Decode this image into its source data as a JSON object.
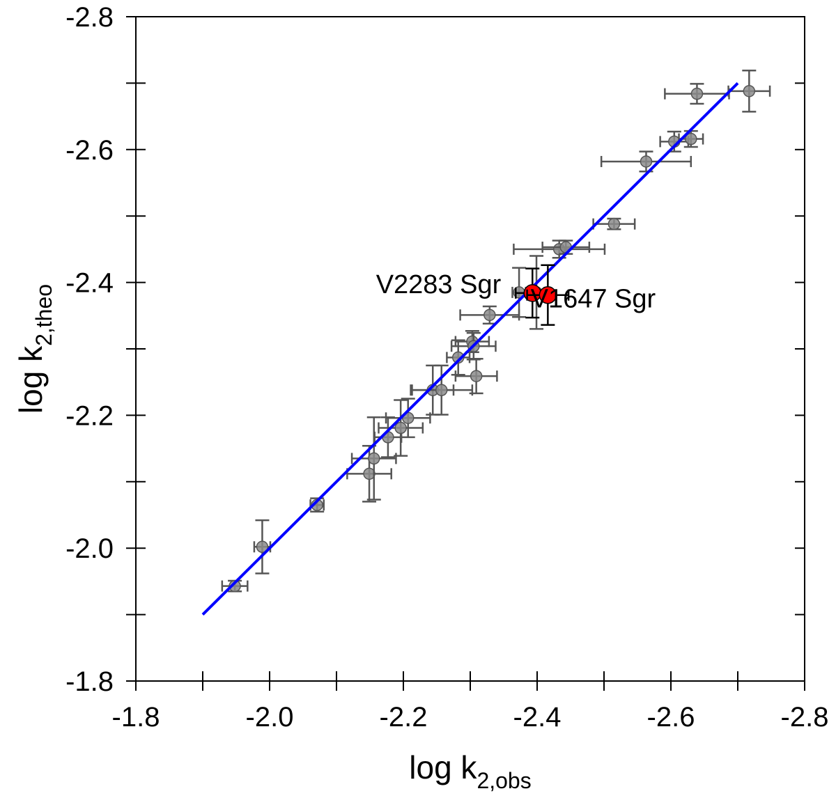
{
  "chart_data": {
    "type": "scatter",
    "xlabel": "log k",
    "xlabel_sub": "2,obs",
    "ylabel": "log k",
    "ylabel_sub": "2,theo",
    "xlim": [
      -1.8,
      -2.8
    ],
    "ylim": [
      -1.8,
      -2.8
    ],
    "x_ticks": [
      "-1.8",
      "-2.0",
      "-2.2",
      "-2.4",
      "-2.6",
      "-2.8"
    ],
    "y_ticks": [
      "-1.8",
      "-2.0",
      "-2.2",
      "-2.4",
      "-2.6",
      "-2.8"
    ],
    "grid": false,
    "colors": {
      "points": "#8c8c8c",
      "highlight": "#ff0000",
      "fit_line": "#0000ff",
      "errorbar": "#555555"
    },
    "fit_line": {
      "x": [
        -1.9,
        -2.7
      ],
      "y": [
        -1.9,
        -2.7
      ]
    },
    "points": [
      {
        "x": -1.948,
        "y": -1.943,
        "xerr": 0.019,
        "yerr": 0.008
      },
      {
        "x": -1.989,
        "y": -2.002,
        "xerr": 0.012,
        "yerr": 0.04
      },
      {
        "x": -2.071,
        "y": -2.065,
        "xerr": 0.01,
        "yerr": 0.01
      },
      {
        "x": -2.149,
        "y": -2.112,
        "xerr": 0.033,
        "yerr": 0.042
      },
      {
        "x": -2.156,
        "y": -2.135,
        "xerr": 0.033,
        "yerr": 0.062
      },
      {
        "x": -2.177,
        "y": -2.167,
        "xerr": 0.02,
        "yerr": 0.03
      },
      {
        "x": -2.196,
        "y": -2.181,
        "xerr": 0.033,
        "yerr": 0.042
      },
      {
        "x": -2.207,
        "y": -2.196,
        "xerr": 0.033,
        "yerr": 0.029
      },
      {
        "x": -2.244,
        "y": -2.238,
        "xerr": 0.031,
        "yerr": 0.037
      },
      {
        "x": -2.257,
        "y": -2.238,
        "xerr": 0.046,
        "yerr": 0.037
      },
      {
        "x": -2.282,
        "y": -2.287,
        "xerr": 0.017,
        "yerr": 0.026
      },
      {
        "x": -2.303,
        "y": -2.311,
        "xerr": 0.025,
        "yerr": 0.016
      },
      {
        "x": -2.305,
        "y": -2.304,
        "xerr": 0.033,
        "yerr": 0.02
      },
      {
        "x": -2.309,
        "y": -2.259,
        "xerr": 0.031,
        "yerr": 0.026
      },
      {
        "x": -2.329,
        "y": -2.351,
        "xerr": 0.044,
        "yerr": 0.013
      },
      {
        "x": -2.373,
        "y": -2.385,
        "xerr": 0.01,
        "yerr": 0.037
      },
      {
        "x": -2.399,
        "y": -2.385,
        "xerr": 0.012,
        "yerr": 0.055
      },
      {
        "x": -2.433,
        "y": -2.45,
        "xerr": 0.068,
        "yerr": 0.013
      },
      {
        "x": -2.443,
        "y": -2.453,
        "xerr": 0.035,
        "yerr": 0.01
      },
      {
        "x": -2.515,
        "y": -2.488,
        "xerr": 0.031,
        "yerr": 0.008
      },
      {
        "x": -2.563,
        "y": -2.582,
        "xerr": 0.067,
        "yerr": 0.015
      },
      {
        "x": -2.605,
        "y": -2.612,
        "xerr": 0.021,
        "yerr": 0.015
      },
      {
        "x": -2.63,
        "y": -2.616,
        "xerr": 0.018,
        "yerr": 0.012
      },
      {
        "x": -2.639,
        "y": -2.684,
        "xerr": 0.048,
        "yerr": 0.015
      },
      {
        "x": -2.717,
        "y": -2.688,
        "xerr": 0.031,
        "yerr": 0.031
      }
    ],
    "highlighted": [
      {
        "name": "V2283 Sgr",
        "x": -2.393,
        "y": -2.384,
        "xerr": 0.025,
        "yerr": 0.037
      },
      {
        "name": "V1647 Sgr",
        "x": -2.416,
        "y": -2.381,
        "xerr": 0.031,
        "yerr": 0.045
      }
    ]
  }
}
